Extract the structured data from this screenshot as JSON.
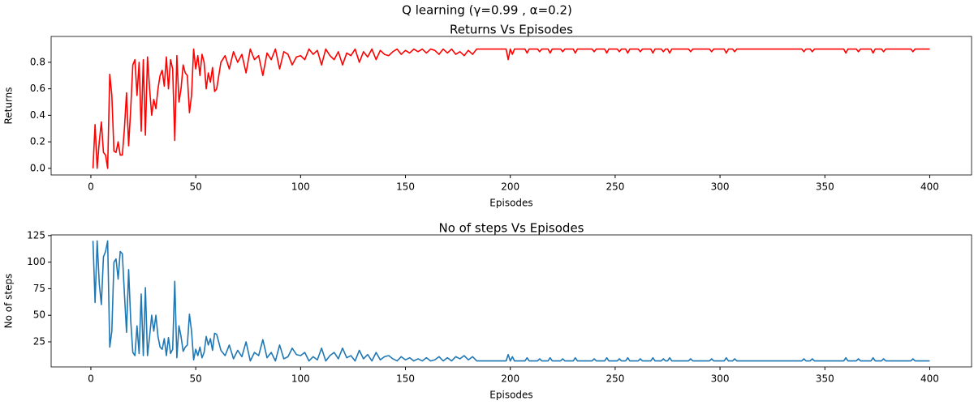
{
  "title": "Q learning (γ=0.99 , α=0.2)",
  "chart_data": [
    {
      "type": "line",
      "title": "Returns Vs Episodes",
      "xlabel": "Episodes",
      "ylabel": "Returns",
      "color": "#ff0000",
      "xlim": [
        -18.95,
        419.95
      ],
      "xticks": [
        0,
        50,
        100,
        150,
        200,
        250,
        300,
        350,
        400
      ],
      "ylim": [
        -0.05,
        0.995
      ],
      "yticks": [
        {
          "value": 0,
          "label": "0.0"
        },
        0.2,
        0.4,
        0.6,
        0.8
      ],
      "x": [
        1,
        2,
        3,
        4,
        5,
        6,
        7,
        8,
        9,
        10,
        11,
        12,
        13,
        14,
        15,
        16,
        17,
        18,
        19,
        20,
        21,
        22,
        23,
        24,
        25,
        26,
        27,
        28,
        29,
        30,
        31,
        32,
        33,
        34,
        35,
        36,
        37,
        38,
        39,
        40,
        41,
        42,
        43,
        44,
        45,
        46,
        47,
        48,
        49,
        50,
        51,
        52,
        53,
        54,
        55,
        56,
        57,
        58,
        59,
        60,
        62,
        64,
        66,
        68,
        70,
        72,
        74,
        76,
        78,
        80,
        82,
        84,
        86,
        88,
        90,
        92,
        94,
        96,
        98,
        100,
        102,
        104,
        106,
        108,
        110,
        112,
        114,
        116,
        118,
        120,
        122,
        124,
        126,
        128,
        130,
        132,
        134,
        136,
        138,
        140,
        142,
        144,
        146,
        148,
        150,
        152,
        154,
        156,
        158,
        160,
        162,
        164,
        166,
        168,
        170,
        172,
        174,
        176,
        178,
        180,
        182,
        184,
        186,
        198,
        199,
        200,
        201,
        202,
        207,
        208,
        209,
        213,
        214,
        215,
        218,
        219,
        220,
        224,
        225,
        226,
        230,
        231,
        232,
        239,
        240,
        241,
        245,
        246,
        247,
        251,
        252,
        253,
        255,
        256,
        257,
        261,
        262,
        263,
        267,
        268,
        269,
        272,
        273,
        274,
        275,
        276,
        277,
        285,
        286,
        287,
        295,
        296,
        297,
        302,
        303,
        304,
        306,
        307,
        308,
        339,
        340,
        341,
        343,
        344,
        345,
        359,
        360,
        361,
        365,
        366,
        367,
        372,
        373,
        374,
        377,
        378,
        379,
        391,
        392,
        393,
        400
      ],
      "values": [
        0,
        0.33,
        0,
        0.2,
        0.35,
        0.12,
        0.1,
        0,
        0.71,
        0.55,
        0.13,
        0.12,
        0.2,
        0.1,
        0.1,
        0.3,
        0.57,
        0.17,
        0.45,
        0.78,
        0.82,
        0.55,
        0.8,
        0.28,
        0.82,
        0.25,
        0.84,
        0.6,
        0.4,
        0.52,
        0.45,
        0.6,
        0.7,
        0.74,
        0.62,
        0.84,
        0.6,
        0.82,
        0.75,
        0.21,
        0.85,
        0.5,
        0.6,
        0.78,
        0.72,
        0.7,
        0.42,
        0.55,
        0.9,
        0.75,
        0.85,
        0.7,
        0.86,
        0.8,
        0.6,
        0.72,
        0.65,
        0.76,
        0.58,
        0.6,
        0.8,
        0.85,
        0.75,
        0.88,
        0.8,
        0.86,
        0.72,
        0.9,
        0.82,
        0.85,
        0.7,
        0.87,
        0.82,
        0.9,
        0.75,
        0.88,
        0.86,
        0.78,
        0.84,
        0.85,
        0.82,
        0.9,
        0.86,
        0.89,
        0.78,
        0.9,
        0.85,
        0.82,
        0.88,
        0.78,
        0.87,
        0.85,
        0.9,
        0.8,
        0.88,
        0.84,
        0.9,
        0.82,
        0.89,
        0.86,
        0.85,
        0.88,
        0.9,
        0.86,
        0.89,
        0.87,
        0.9,
        0.88,
        0.9,
        0.87,
        0.9,
        0.89,
        0.86,
        0.9,
        0.87,
        0.9,
        0.86,
        0.88,
        0.85,
        0.89,
        0.86,
        0.9,
        0.9,
        0.9,
        0.82,
        0.9,
        0.86,
        0.9,
        0.9,
        0.87,
        0.9,
        0.9,
        0.88,
        0.9,
        0.9,
        0.87,
        0.9,
        0.9,
        0.88,
        0.9,
        0.9,
        0.87,
        0.9,
        0.9,
        0.88,
        0.9,
        0.9,
        0.87,
        0.9,
        0.9,
        0.88,
        0.9,
        0.9,
        0.87,
        0.9,
        0.9,
        0.88,
        0.9,
        0.9,
        0.87,
        0.9,
        0.9,
        0.88,
        0.9,
        0.9,
        0.87,
        0.9,
        0.9,
        0.88,
        0.9,
        0.9,
        0.88,
        0.9,
        0.9,
        0.87,
        0.9,
        0.9,
        0.88,
        0.9,
        0.9,
        0.88,
        0.9,
        0.9,
        0.88,
        0.9,
        0.9,
        0.87,
        0.9,
        0.9,
        0.88,
        0.9,
        0.9,
        0.87,
        0.9,
        0.9,
        0.88,
        0.9,
        0.9,
        0.88,
        0.9,
        0.9
      ]
    },
    {
      "type": "line",
      "title": "No of steps Vs Episodes",
      "xlabel": "Episodes",
      "ylabel": "No of steps",
      "color": "#1f77b4",
      "xlim": [
        -18.95,
        419.95
      ],
      "xticks": [
        0,
        50,
        100,
        150,
        200,
        250,
        300,
        350,
        400
      ],
      "ylim": [
        1.35,
        125.65
      ],
      "yticks": [
        25,
        50,
        75,
        100,
        125
      ],
      "x": [
        1,
        2,
        3,
        4,
        5,
        6,
        7,
        8,
        9,
        10,
        11,
        12,
        13,
        14,
        15,
        16,
        17,
        18,
        19,
        20,
        21,
        22,
        23,
        24,
        25,
        26,
        27,
        28,
        29,
        30,
        31,
        32,
        33,
        34,
        35,
        36,
        37,
        38,
        39,
        40,
        41,
        42,
        43,
        44,
        45,
        46,
        47,
        48,
        49,
        50,
        51,
        52,
        53,
        54,
        55,
        56,
        57,
        58,
        59,
        60,
        62,
        64,
        66,
        68,
        70,
        72,
        74,
        76,
        78,
        80,
        82,
        84,
        86,
        88,
        90,
        92,
        94,
        96,
        98,
        100,
        102,
        104,
        106,
        108,
        110,
        112,
        114,
        116,
        118,
        120,
        122,
        124,
        126,
        128,
        130,
        132,
        134,
        136,
        138,
        140,
        142,
        144,
        146,
        148,
        150,
        152,
        154,
        156,
        158,
        160,
        162,
        164,
        166,
        168,
        170,
        172,
        174,
        176,
        178,
        180,
        182,
        184,
        186,
        198,
        199,
        200,
        201,
        202,
        207,
        208,
        209,
        213,
        214,
        215,
        218,
        219,
        220,
        224,
        225,
        226,
        230,
        231,
        232,
        239,
        240,
        241,
        245,
        246,
        247,
        251,
        252,
        253,
        255,
        256,
        257,
        261,
        262,
        263,
        267,
        268,
        269,
        272,
        273,
        274,
        275,
        276,
        277,
        285,
        286,
        287,
        295,
        296,
        297,
        302,
        303,
        304,
        306,
        307,
        308,
        339,
        340,
        341,
        343,
        344,
        345,
        359,
        360,
        361,
        365,
        366,
        367,
        372,
        373,
        374,
        377,
        378,
        379,
        391,
        392,
        393,
        400
      ],
      "values": [
        120,
        62,
        120,
        80,
        60,
        105,
        110,
        120,
        20,
        35,
        100,
        103,
        84,
        110,
        108,
        70,
        34,
        93,
        45,
        15,
        12,
        40,
        14,
        70,
        12,
        76,
        12,
        30,
        50,
        35,
        50,
        30,
        20,
        18,
        28,
        12,
        29,
        14,
        18,
        82,
        10,
        40,
        30,
        16,
        20,
        22,
        51,
        35,
        8,
        18,
        12,
        20,
        10,
        15,
        30,
        22,
        28,
        17,
        33,
        32,
        17,
        12,
        22,
        9,
        17,
        11,
        25,
        7,
        15,
        12,
        27,
        10,
        15,
        7,
        22,
        9,
        11,
        19,
        13,
        12,
        15,
        7,
        11,
        8,
        19,
        7,
        12,
        15,
        9,
        19,
        10,
        12,
        7,
        17,
        9,
        13,
        7,
        15,
        8,
        11,
        12,
        9,
        7,
        11,
        8,
        10,
        7,
        9,
        7,
        10,
        7,
        8,
        11,
        7,
        10,
        7,
        11,
        9,
        12,
        8,
        11,
        7,
        7,
        7,
        13,
        7,
        11,
        7,
        7,
        10,
        7,
        7,
        9,
        7,
        7,
        10,
        7,
        7,
        9,
        7,
        7,
        10,
        7,
        7,
        9,
        7,
        7,
        10,
        7,
        7,
        9,
        7,
        7,
        10,
        7,
        7,
        9,
        7,
        7,
        10,
        7,
        7,
        9,
        7,
        7,
        10,
        7,
        7,
        9,
        7,
        7,
        9,
        7,
        7,
        10,
        7,
        7,
        9,
        7,
        7,
        9,
        7,
        7,
        9,
        7,
        7,
        10,
        7,
        7,
        9,
        7,
        7,
        10,
        7,
        7,
        9,
        7,
        7,
        9,
        7,
        7
      ]
    }
  ]
}
